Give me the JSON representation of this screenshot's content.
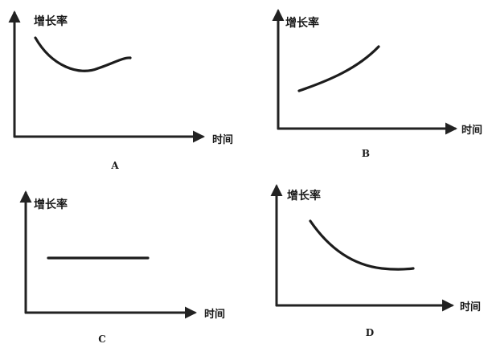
{
  "panels": [
    {
      "id": "A",
      "label": "A",
      "y_axis_label": "增长率",
      "x_axis_label": "时间",
      "curve_shape": "u-shaped: falls then rises"
    },
    {
      "id": "B",
      "label": "B",
      "y_axis_label": "增长率",
      "x_axis_label": "时间",
      "curve_shape": "rising"
    },
    {
      "id": "C",
      "label": "C",
      "y_axis_label": "增长率",
      "x_axis_label": "时间",
      "curve_shape": "constant"
    },
    {
      "id": "D",
      "label": "D",
      "y_axis_label": "增长率",
      "x_axis_label": "时间",
      "curve_shape": "falling and leveling off"
    }
  ]
}
